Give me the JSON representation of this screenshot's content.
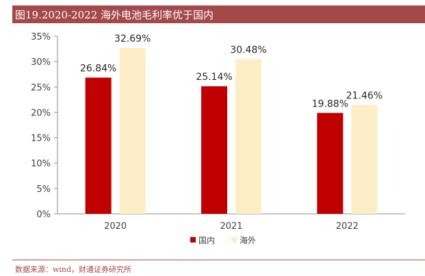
{
  "title": "图19.2020-2022 海外电池毛利率优于国内",
  "source": "数据来源：wind，财通证券研究所",
  "chart_data": {
    "type": "bar",
    "categories": [
      "2020",
      "2021",
      "2022"
    ],
    "series": [
      {
        "name": "国内",
        "values": [
          26.84,
          25.14,
          19.88
        ],
        "labels": [
          "26.84%",
          "25.14%",
          "19.88%"
        ],
        "color": "#c00000"
      },
      {
        "name": "海外",
        "values": [
          32.69,
          30.48,
          21.46
        ],
        "labels": [
          "32.69%",
          "30.48%",
          "21.46%"
        ],
        "color": "#fdeec8"
      }
    ],
    "ylim": [
      0,
      35
    ],
    "yticks": [
      0,
      5,
      10,
      15,
      20,
      25,
      30,
      35
    ],
    "ytick_labels": [
      "0%",
      "5%",
      "10%",
      "15%",
      "20%",
      "25%",
      "30%",
      "35%"
    ],
    "grid": false,
    "legend_position": "bottom"
  }
}
